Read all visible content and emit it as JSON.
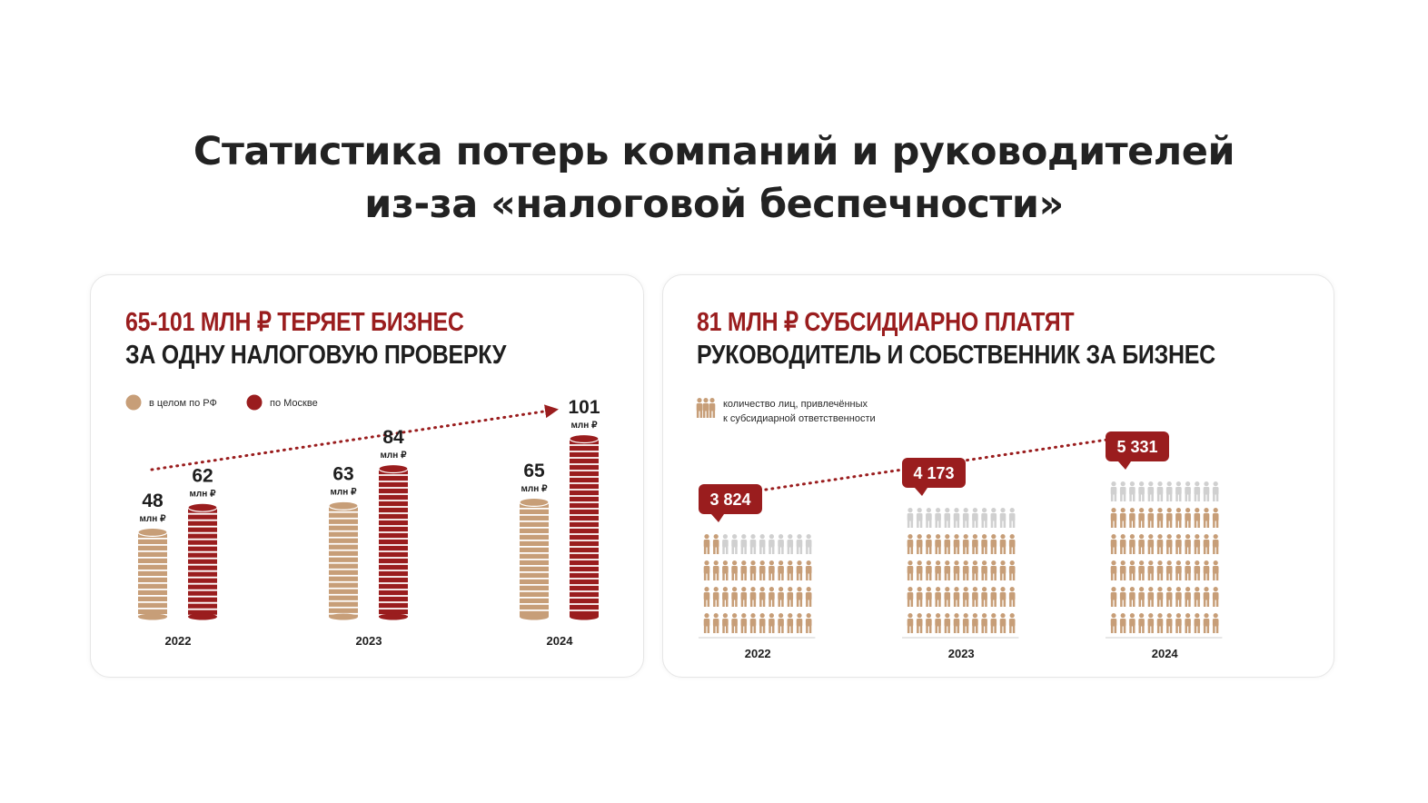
{
  "title": {
    "line1": "Статистика потерь компаний и руководителей",
    "line2": "из-за «налоговой беспечности»"
  },
  "colors": {
    "accent": "#9a1d1e",
    "tan": "#c79e78",
    "gray": "#d0d0d0",
    "text": "#1e1e1e"
  },
  "left_card": {
    "headline_red": "65-101 МЛН ₽ ТЕРЯЕТ БИЗНЕС",
    "headline_dark": "ЗА ОДНУ НАЛОГОВУЮ ПРОВЕРКУ",
    "legend": {
      "rf": "в целом по РФ",
      "moscow": "по Москве"
    },
    "unit": "млн ₽"
  },
  "right_card": {
    "headline_red": "81 МЛН ₽ СУБСИДИАРНО ПЛАТЯТ",
    "headline_dark": "РУКОВОДИТЕЛЬ И СОБСТВЕННИК ЗА БИЗНЕС",
    "legend": {
      "line1": "количество лиц, привлечённых",
      "line2": "к субсидиарной ответственности"
    }
  },
  "chart_data": [
    {
      "type": "bar",
      "categories": [
        "2022",
        "2023",
        "2024"
      ],
      "series": [
        {
          "name": "в целом по РФ",
          "values": [
            48,
            63,
            65
          ],
          "labels": [
            "48",
            "63",
            "65"
          ]
        },
        {
          "name": "по Москве",
          "values": [
            62,
            84,
            101
          ],
          "labels": [
            "62",
            "84",
            "101"
          ]
        }
      ],
      "unit": "млн ₽",
      "title": "65-101 МЛН ₽ ТЕРЯЕТ БИЗНЕС ЗА ОДНУ НАЛОГОВУЮ ПРОВЕРКУ",
      "trend_arrow": true
    },
    {
      "type": "bar",
      "categories": [
        "2022",
        "2023",
        "2024"
      ],
      "series": [
        {
          "name": "количество лиц, привлечённых к субсидиарной ответственности",
          "values": [
            3824,
            4173,
            5331
          ],
          "labels": [
            "3 824",
            "4 173",
            "5 331"
          ]
        }
      ],
      "title": "81 МЛН ₽ СУБСИДИАРНО ПЛАТЯТ РУКОВОДИТЕЛЬ И СОБСТВЕННИК ЗА БИЗНЕС",
      "trend_line": true
    }
  ]
}
